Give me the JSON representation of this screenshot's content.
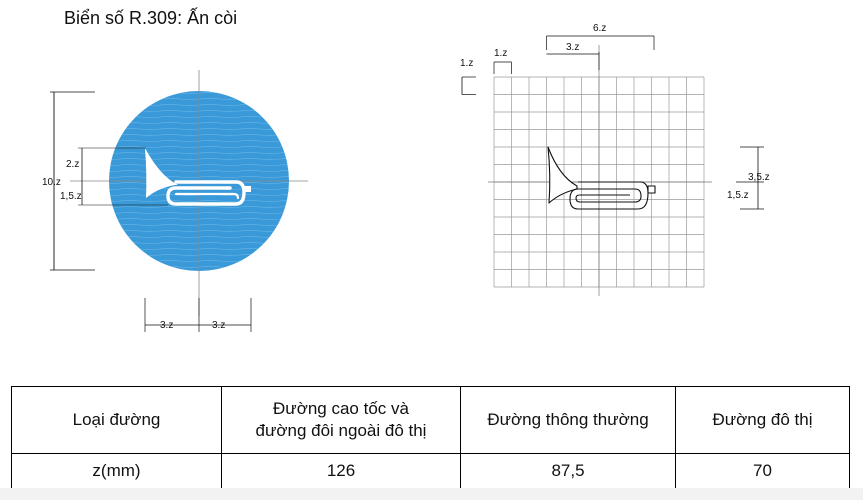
{
  "title": "Biển số R.309: Ấn còi",
  "left_diagram": {
    "dims": {
      "height_total": "10.z",
      "upper": "2.z",
      "lower": "1,5.z",
      "half_left": "3.z",
      "half_right": "3.z"
    },
    "sign_color": "#3a9ad9"
  },
  "right_diagram": {
    "dims": {
      "width_6": "6.z",
      "width_3": "3.z",
      "cell_w": "1.z",
      "cell_h": "1.z",
      "right_upper": "3,5.z",
      "right_lower": "1,5.z"
    }
  },
  "table": {
    "header_label": "Loại đường",
    "col1_line1": "Đường cao tốc và",
    "col1_line2": "đường đôi ngoài đô thị",
    "col2": "Đường thông thường",
    "col3": "Đường đô thị",
    "row_label": "z(mm)",
    "v1": "126",
    "v2": "87,5",
    "v3": "70"
  }
}
